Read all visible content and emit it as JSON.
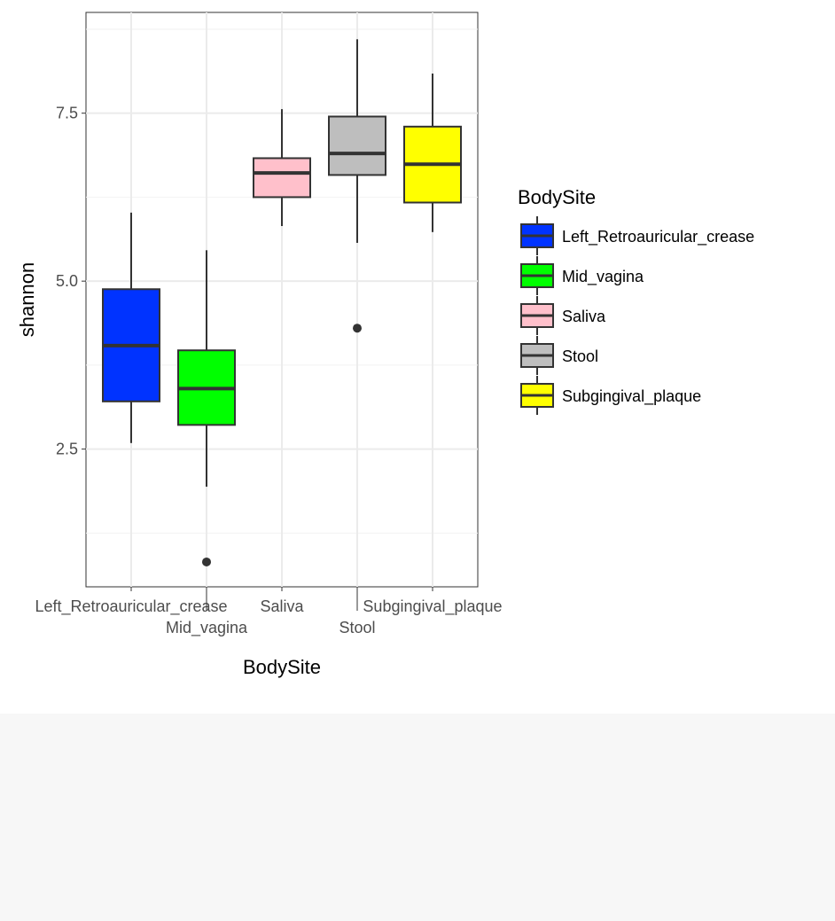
{
  "chart_data": {
    "type": "boxplot",
    "xlabel": "BodySite",
    "ylabel": "shannon",
    "ylim": [
      0.45,
      9.0
    ],
    "yticks": [
      2.5,
      5.0,
      7.5
    ],
    "ytick_labels": [
      "2.5",
      "5.0",
      "7.5"
    ],
    "grid": true,
    "legend": {
      "title": "BodySite",
      "placement": "right"
    },
    "categories": [
      "Left_Retroauricular_crease",
      "Mid_vagina",
      "Saliva",
      "Stool",
      "Subgingival_plaque"
    ],
    "colors": [
      "#0033FF",
      "#00FF00",
      "#FFC0CB",
      "#BEBEBE",
      "#FFFF00"
    ],
    "boxes": [
      {
        "name": "Left_Retroauricular_crease",
        "whisker_low": 2.59,
        "q1": 3.21,
        "median": 4.04,
        "q3": 4.88,
        "whisker_high": 6.02,
        "outliers": []
      },
      {
        "name": "Mid_vagina",
        "whisker_low": 1.94,
        "q1": 2.86,
        "median": 3.4,
        "q3": 3.97,
        "whisker_high": 5.46,
        "outliers": [
          0.82
        ]
      },
      {
        "name": "Saliva",
        "whisker_low": 5.82,
        "q1": 6.25,
        "median": 6.61,
        "q3": 6.83,
        "whisker_high": 7.56,
        "outliers": []
      },
      {
        "name": "Stool",
        "whisker_low": 5.57,
        "q1": 6.58,
        "median": 6.9,
        "q3": 7.45,
        "whisker_high": 8.6,
        "outliers": [
          4.3
        ]
      },
      {
        "name": "Subgingival_plaque",
        "whisker_low": 5.73,
        "q1": 6.17,
        "median": 6.74,
        "q3": 7.3,
        "whisker_high": 8.09,
        "outliers": []
      }
    ]
  }
}
